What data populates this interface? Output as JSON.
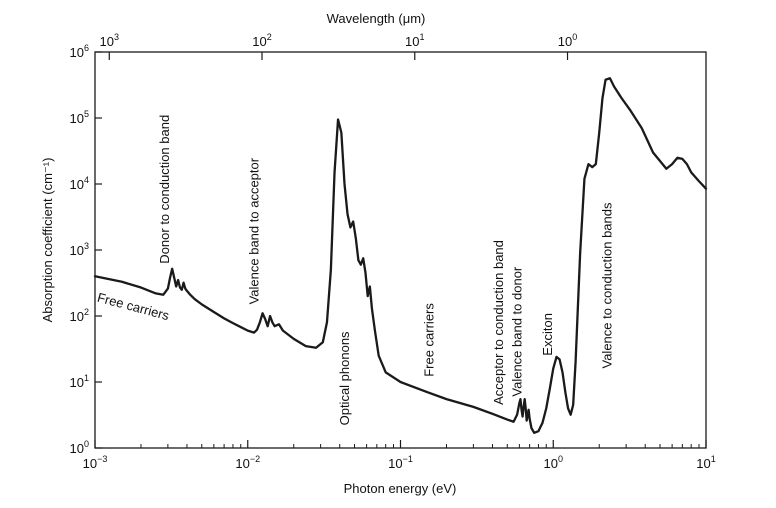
{
  "chart_data": {
    "type": "line",
    "title": "",
    "xlabel": "Photon energy (eV)",
    "ylabel": "Absorption coefficient (cm⁻¹)",
    "top_xlabel": "Wavelength (μm)",
    "x_scale": "log",
    "y_scale": "log",
    "xlim": [
      0.001,
      10
    ],
    "ylim": [
      1,
      1000000
    ],
    "grid": false,
    "legend": "none",
    "line_color": "#1a1a1a",
    "x_ticks": [
      {
        "value": 0.001,
        "base": "10",
        "exp": "−3"
      },
      {
        "value": 0.01,
        "base": "10",
        "exp": "−2"
      },
      {
        "value": 0.1,
        "base": "10",
        "exp": "−1"
      },
      {
        "value": 1,
        "base": "10",
        "exp": "0"
      },
      {
        "value": 10,
        "base": "10",
        "exp": "1"
      }
    ],
    "top_ticks": [
      {
        "wavelength": 1000,
        "base": "10",
        "exp": "3"
      },
      {
        "wavelength": 100,
        "base": "10",
        "exp": "2"
      },
      {
        "wavelength": 10,
        "base": "10",
        "exp": "1"
      },
      {
        "wavelength": 1,
        "base": "10",
        "exp": "0"
      }
    ],
    "y_ticks": [
      {
        "value": 1,
        "base": "10",
        "exp": "0"
      },
      {
        "value": 10,
        "base": "10",
        "exp": "1"
      },
      {
        "value": 100,
        "base": "10",
        "exp": "2"
      },
      {
        "value": 1000,
        "base": "10",
        "exp": "3"
      },
      {
        "value": 10000,
        "base": "10",
        "exp": "4"
      },
      {
        "value": 100000,
        "base": "10",
        "exp": "5"
      },
      {
        "value": 1000000,
        "base": "10",
        "exp": "6"
      }
    ],
    "series": [
      {
        "x": [
          0.001,
          0.0015,
          0.002,
          0.0025,
          0.0028,
          0.003,
          0.0031,
          0.0032,
          0.0033,
          0.0034,
          0.0035,
          0.0036,
          0.0037,
          0.0038,
          0.0039,
          0.004,
          0.0042,
          0.0045,
          0.005,
          0.006,
          0.007,
          0.008,
          0.009,
          0.01,
          0.011,
          0.0115,
          0.012,
          0.0125,
          0.013,
          0.0135,
          0.014,
          0.0145,
          0.015,
          0.016,
          0.017,
          0.02,
          0.024,
          0.028,
          0.031,
          0.033,
          0.035,
          0.037,
          0.039,
          0.041,
          0.043,
          0.045,
          0.047,
          0.049,
          0.051,
          0.053,
          0.055,
          0.057,
          0.059,
          0.061,
          0.063,
          0.065,
          0.068,
          0.072,
          0.08,
          0.1,
          0.15,
          0.2,
          0.3,
          0.4,
          0.5,
          0.55,
          0.58,
          0.6,
          0.61,
          0.62,
          0.63,
          0.64,
          0.65,
          0.66,
          0.67,
          0.68,
          0.69,
          0.7,
          0.72,
          0.75,
          0.8,
          0.85,
          0.9,
          0.95,
          1.0,
          1.05,
          1.1,
          1.15,
          1.2,
          1.25,
          1.3,
          1.35,
          1.4,
          1.5,
          1.6,
          1.7,
          1.8,
          1.9,
          2.0,
          2.1,
          2.2,
          2.35,
          2.5,
          2.8,
          3.2,
          3.8,
          4.5,
          5.5,
          6.0,
          6.5,
          7.0,
          7.5,
          8.0,
          9.0,
          10.0
        ],
        "y": [
          400,
          330,
          270,
          220,
          210,
          260,
          380,
          520,
          380,
          280,
          350,
          270,
          250,
          320,
          260,
          240,
          210,
          180,
          150,
          115,
          92,
          78,
          68,
          60,
          56,
          62,
          80,
          110,
          90,
          70,
          100,
          80,
          70,
          75,
          60,
          45,
          35,
          33,
          40,
          80,
          500,
          15000,
          95000,
          60000,
          10000,
          3500,
          2200,
          2700,
          1500,
          700,
          600,
          750,
          450,
          200,
          280,
          130,
          60,
          25,
          14,
          10,
          7,
          5.5,
          4.2,
          3.3,
          2.7,
          2.5,
          3.2,
          4.8,
          5.5,
          3.8,
          3.0,
          4.2,
          5.5,
          4.0,
          2.6,
          3.2,
          3.8,
          2.8,
          2.0,
          1.7,
          1.8,
          2.4,
          4.0,
          8.0,
          16,
          24,
          22,
          14,
          7,
          4.0,
          3.2,
          4.5,
          20,
          900,
          12000,
          20000,
          18000,
          20000,
          60000,
          200000,
          380000,
          400000,
          300000,
          200000,
          130000,
          70000,
          30000,
          17000,
          20000,
          25000,
          24000,
          20000,
          15000,
          11000,
          8500
        ]
      }
    ],
    "annotations": [
      {
        "text": "Donor to conduction band",
        "x": 0.00305,
        "y": 620,
        "rotate": -90
      },
      {
        "text": "Valence band to acceptor",
        "x": 0.0118,
        "y": 150,
        "rotate": -90
      },
      {
        "text": "Free carriers",
        "x": 0.00175,
        "y": 120,
        "rotate": 15
      },
      {
        "text": "Optical phonons",
        "x": 0.046,
        "y": 2.2,
        "rotate": -90
      },
      {
        "text": "Free carriers",
        "x": 0.165,
        "y": 12,
        "rotate": -90
      },
      {
        "text": "Acceptor to conduction band",
        "x": 0.47,
        "y": 4.5,
        "rotate": -90
      },
      {
        "text": "Valence band to donor",
        "x": 0.62,
        "y": 6,
        "rotate": -90
      },
      {
        "text": "Exciton",
        "x": 0.98,
        "y": 25,
        "rotate": -90
      },
      {
        "text": "Valence to conduction bands",
        "x": 2.4,
        "y": 16,
        "rotate": -90
      }
    ]
  }
}
